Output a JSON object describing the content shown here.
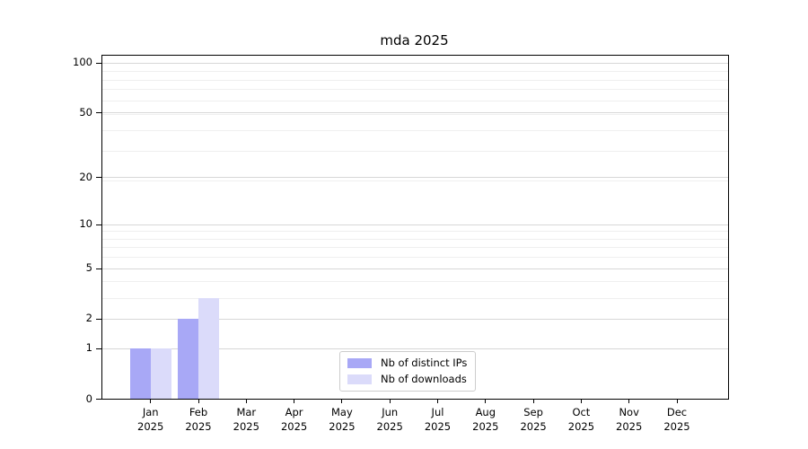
{
  "chart_data": {
    "type": "bar",
    "title": "mda 2025",
    "categories": [
      "Jan 2025",
      "Feb 2025",
      "Mar 2025",
      "Apr 2025",
      "May 2025",
      "Jun 2025",
      "Jul 2025",
      "Aug 2025",
      "Sep 2025",
      "Oct 2025",
      "Nov 2025",
      "Dec 2025"
    ],
    "series": [
      {
        "name": "Nb of distinct IPs",
        "color": "#a8a8f6",
        "values": [
          1,
          2,
          0,
          0,
          0,
          0,
          0,
          0,
          0,
          0,
          0,
          0
        ]
      },
      {
        "name": "Nb of downloads",
        "color": "#dbdbfa",
        "values": [
          1,
          3,
          0,
          0,
          0,
          0,
          0,
          0,
          0,
          0,
          0,
          0
        ]
      }
    ],
    "xlabel": "",
    "ylabel": "",
    "yscale": "log1p",
    "yticks": [
      0,
      1,
      2,
      5,
      10,
      20,
      50,
      100
    ],
    "ylim": [
      0,
      110
    ],
    "grid": true,
    "legend_position": "lower-center-inside",
    "colors": {
      "grid_major": "#d7d7d7",
      "grid_minor": "#efefef",
      "axis": "#000000",
      "legend_border": "#cccccc",
      "background": "#ffffff"
    }
  }
}
